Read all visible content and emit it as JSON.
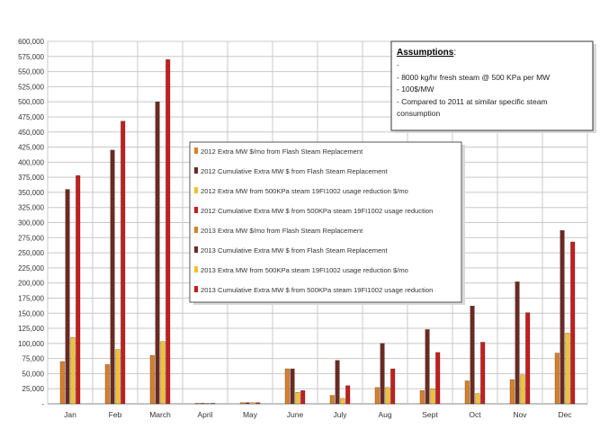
{
  "chart_data": {
    "type": "bar",
    "categories": [
      "Jan",
      "Feb",
      "March",
      "April",
      "May",
      "June",
      "July",
      "Aug",
      "Sept",
      "Oct",
      "Nov",
      "Dec"
    ],
    "y_ticks": [
      "-",
      "25,000",
      "50,000",
      "75,000",
      "100,000",
      "125,000",
      "150,000",
      "175,000",
      "200,000",
      "225,000",
      "250,000",
      "275,000",
      "300,000",
      "325,000",
      "350,000",
      "375,000",
      "400,000",
      "425,000",
      "450,000",
      "475,000",
      "500,000",
      "525,000",
      "550,000",
      "575,000",
      "600,000"
    ],
    "ylim": [
      0,
      600000
    ],
    "grid": true,
    "legend_position": "center",
    "series": [
      {
        "name": "2012 Extra MW $/mo from Flash Steam Replacement",
        "color": "#d97f28",
        "values": [
          null,
          null,
          null,
          null,
          null,
          null,
          null,
          null,
          null,
          null,
          null,
          null
        ]
      },
      {
        "name": "2012 Cumulative Extra MW $ from Flash Steam Replacement",
        "color": "#6b2a22",
        "values": [
          null,
          null,
          null,
          null,
          null,
          null,
          null,
          null,
          null,
          null,
          null,
          null
        ]
      },
      {
        "name": "2012 Extra MW from 500KPa steam 19FI1002 usage reduction $/mo",
        "color": "#f2c12e",
        "values": [
          null,
          null,
          null,
          null,
          null,
          null,
          null,
          null,
          null,
          null,
          null,
          null
        ]
      },
      {
        "name": "2012 Cumulative Extra MW $ from 500KPa steam 19FI1002 usage reduction",
        "color": "#c41e1e",
        "values": [
          null,
          null,
          null,
          null,
          null,
          null,
          null,
          null,
          null,
          null,
          null,
          null
        ]
      },
      {
        "name": "2013 Extra MW $/mo from Flash Steam Replacement",
        "color": "#d97f28",
        "values": [
          70000,
          65000,
          80000,
          0,
          2000,
          58000,
          14000,
          27000,
          22000,
          38000,
          40000,
          84000
        ]
      },
      {
        "name": "2013 Cumulative Extra MW $ from Flash Steam Replacement",
        "color": "#6b2a22",
        "values": [
          355000,
          420000,
          500000,
          0,
          2000,
          58000,
          72000,
          100000,
          123000,
          162000,
          202000,
          287000
        ]
      },
      {
        "name": "2013 Extra MW from 500KPa steam 19FI1002 usage reduction $/mo",
        "color": "#f2c12e",
        "values": [
          110000,
          90000,
          103000,
          0,
          2000,
          19000,
          9000,
          27000,
          25000,
          17000,
          48000,
          117000
        ]
      },
      {
        "name": "2013 Cumulative Extra MW $ from 500KPa steam 19FI1002 usage reduction",
        "color": "#c41e1e",
        "values": [
          378000,
          468000,
          570000,
          0,
          2000,
          22000,
          30000,
          58000,
          85000,
          102000,
          151000,
          268000
        ]
      }
    ]
  },
  "assumptions": {
    "title": "Assumptions",
    "title_suffix": ":",
    "lines": [
      "-",
      "- 8000 kg/hr fresh steam @ 500 KPa per MW",
      "- 100$/MW",
      "- Compared to 2011 at similar specific steam",
      "consumption"
    ]
  }
}
